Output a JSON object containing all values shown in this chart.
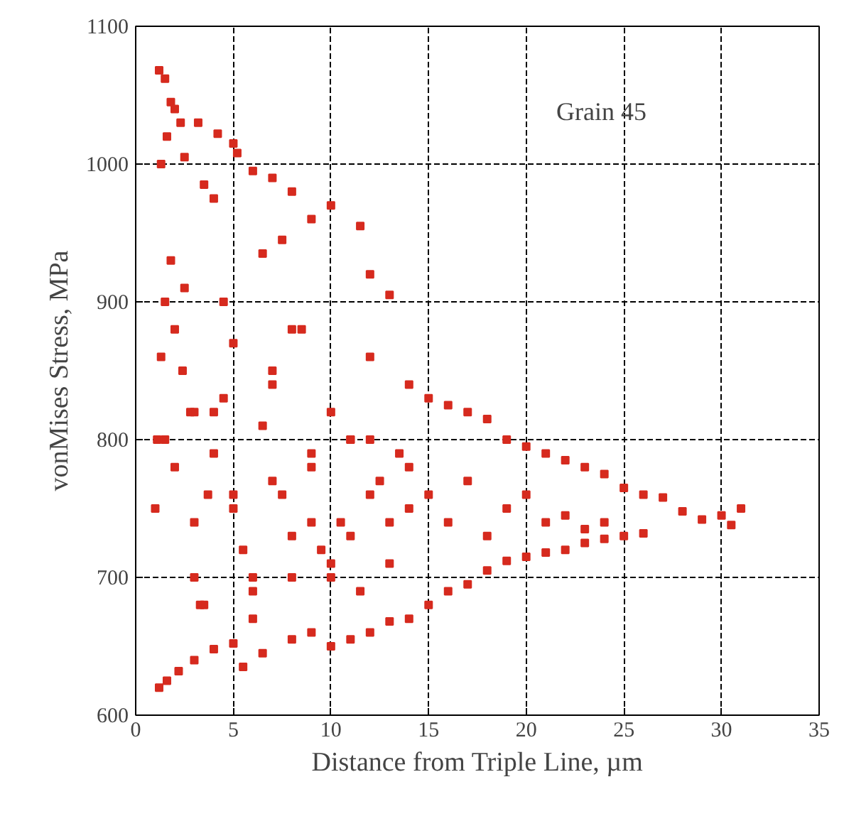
{
  "chart_data": {
    "type": "scatter",
    "xlabel": "Distance from Triple Line, µm",
    "ylabel": "vonMises Stress, MPa",
    "annotations": [
      "Grain 45"
    ],
    "marker": "square",
    "grid": true,
    "xlim": [
      0,
      35
    ],
    "ylim": [
      600,
      1100
    ],
    "xticks": [
      0,
      5,
      10,
      15,
      20,
      25,
      30,
      35
    ],
    "yticks": [
      600,
      700,
      800,
      900,
      1000,
      1100
    ],
    "series": [
      {
        "color": "#d62a1e",
        "x": [
          1.2,
          1.5,
          1.8,
          2.0,
          1.6,
          2.3,
          3.2,
          4.2,
          5.0,
          5.2,
          1.3,
          2.5,
          3.5,
          4.0,
          6.0,
          7.0,
          8.0,
          10.0,
          11.5,
          9.0,
          13.0,
          12.0,
          7.5,
          6.5,
          1.2,
          1.6,
          2.2,
          3.0,
          4.0,
          5.0,
          5.5,
          6.5,
          8.0,
          9.0,
          10.0,
          11.0,
          12.0,
          13.0,
          14.0,
          15.0,
          16.0,
          17.0,
          18.0,
          19.0,
          20.0,
          21.0,
          22.0,
          23.0,
          24.0,
          25.0,
          26.0,
          14.0,
          15.0,
          16.0,
          17.0,
          18.0,
          19.0,
          20.0,
          21.0,
          22.0,
          23.0,
          24.0,
          25.0,
          26.0,
          27.0,
          28.0,
          29.0,
          30.0,
          31.0,
          30.5,
          1.0,
          1.1,
          1.3,
          1.5,
          1.8,
          2.0,
          2.4,
          2.8,
          3.0,
          3.3,
          3.7,
          4.0,
          4.5,
          5.0,
          5.5,
          6.0,
          6.5,
          7.0,
          7.5,
          8.0,
          8.5,
          9.0,
          9.5,
          10.0,
          10.5,
          11.0,
          11.5,
          12.0,
          12.5,
          13.0,
          13.5,
          14.0,
          15.0,
          16.0,
          17.0,
          18.0,
          19.0,
          20.0,
          21.0,
          22.0,
          23.0,
          24.0,
          2.0,
          3.0,
          4.0,
          5.0,
          6.0,
          7.0,
          8.0,
          9.0,
          10.0,
          11.0,
          12.0,
          13.0,
          2.5,
          3.5,
          4.5,
          6.0,
          8.0,
          10.0,
          12.0,
          14.0,
          1.5,
          3.0,
          5.0,
          7.0,
          9.0,
          11.0
        ],
        "values": [
          1068,
          1062,
          1045,
          1040,
          1020,
          1030,
          1030,
          1022,
          1015,
          1008,
          1000,
          1005,
          985,
          975,
          995,
          990,
          980,
          970,
          955,
          960,
          905,
          920,
          945,
          935,
          620,
          625,
          632,
          640,
          648,
          652,
          635,
          645,
          655,
          660,
          650,
          655,
          660,
          668,
          670,
          680,
          690,
          695,
          705,
          712,
          715,
          718,
          720,
          725,
          728,
          730,
          732,
          840,
          830,
          825,
          820,
          815,
          800,
          795,
          790,
          785,
          780,
          775,
          765,
          760,
          758,
          748,
          742,
          745,
          750,
          738,
          750,
          800,
          860,
          900,
          930,
          880,
          850,
          820,
          700,
          680,
          760,
          790,
          830,
          870,
          720,
          690,
          810,
          840,
          760,
          700,
          880,
          780,
          720,
          820,
          740,
          800,
          690,
          860,
          770,
          710,
          790,
          750,
          760,
          740,
          770,
          730,
          750,
          760,
          740,
          745,
          735,
          740,
          780,
          740,
          820,
          760,
          700,
          850,
          730,
          790,
          710,
          800,
          760,
          740,
          910,
          680,
          900,
          670,
          880,
          700,
          800,
          780,
          800,
          820,
          750,
          770,
          740,
          730
        ]
      }
    ]
  }
}
